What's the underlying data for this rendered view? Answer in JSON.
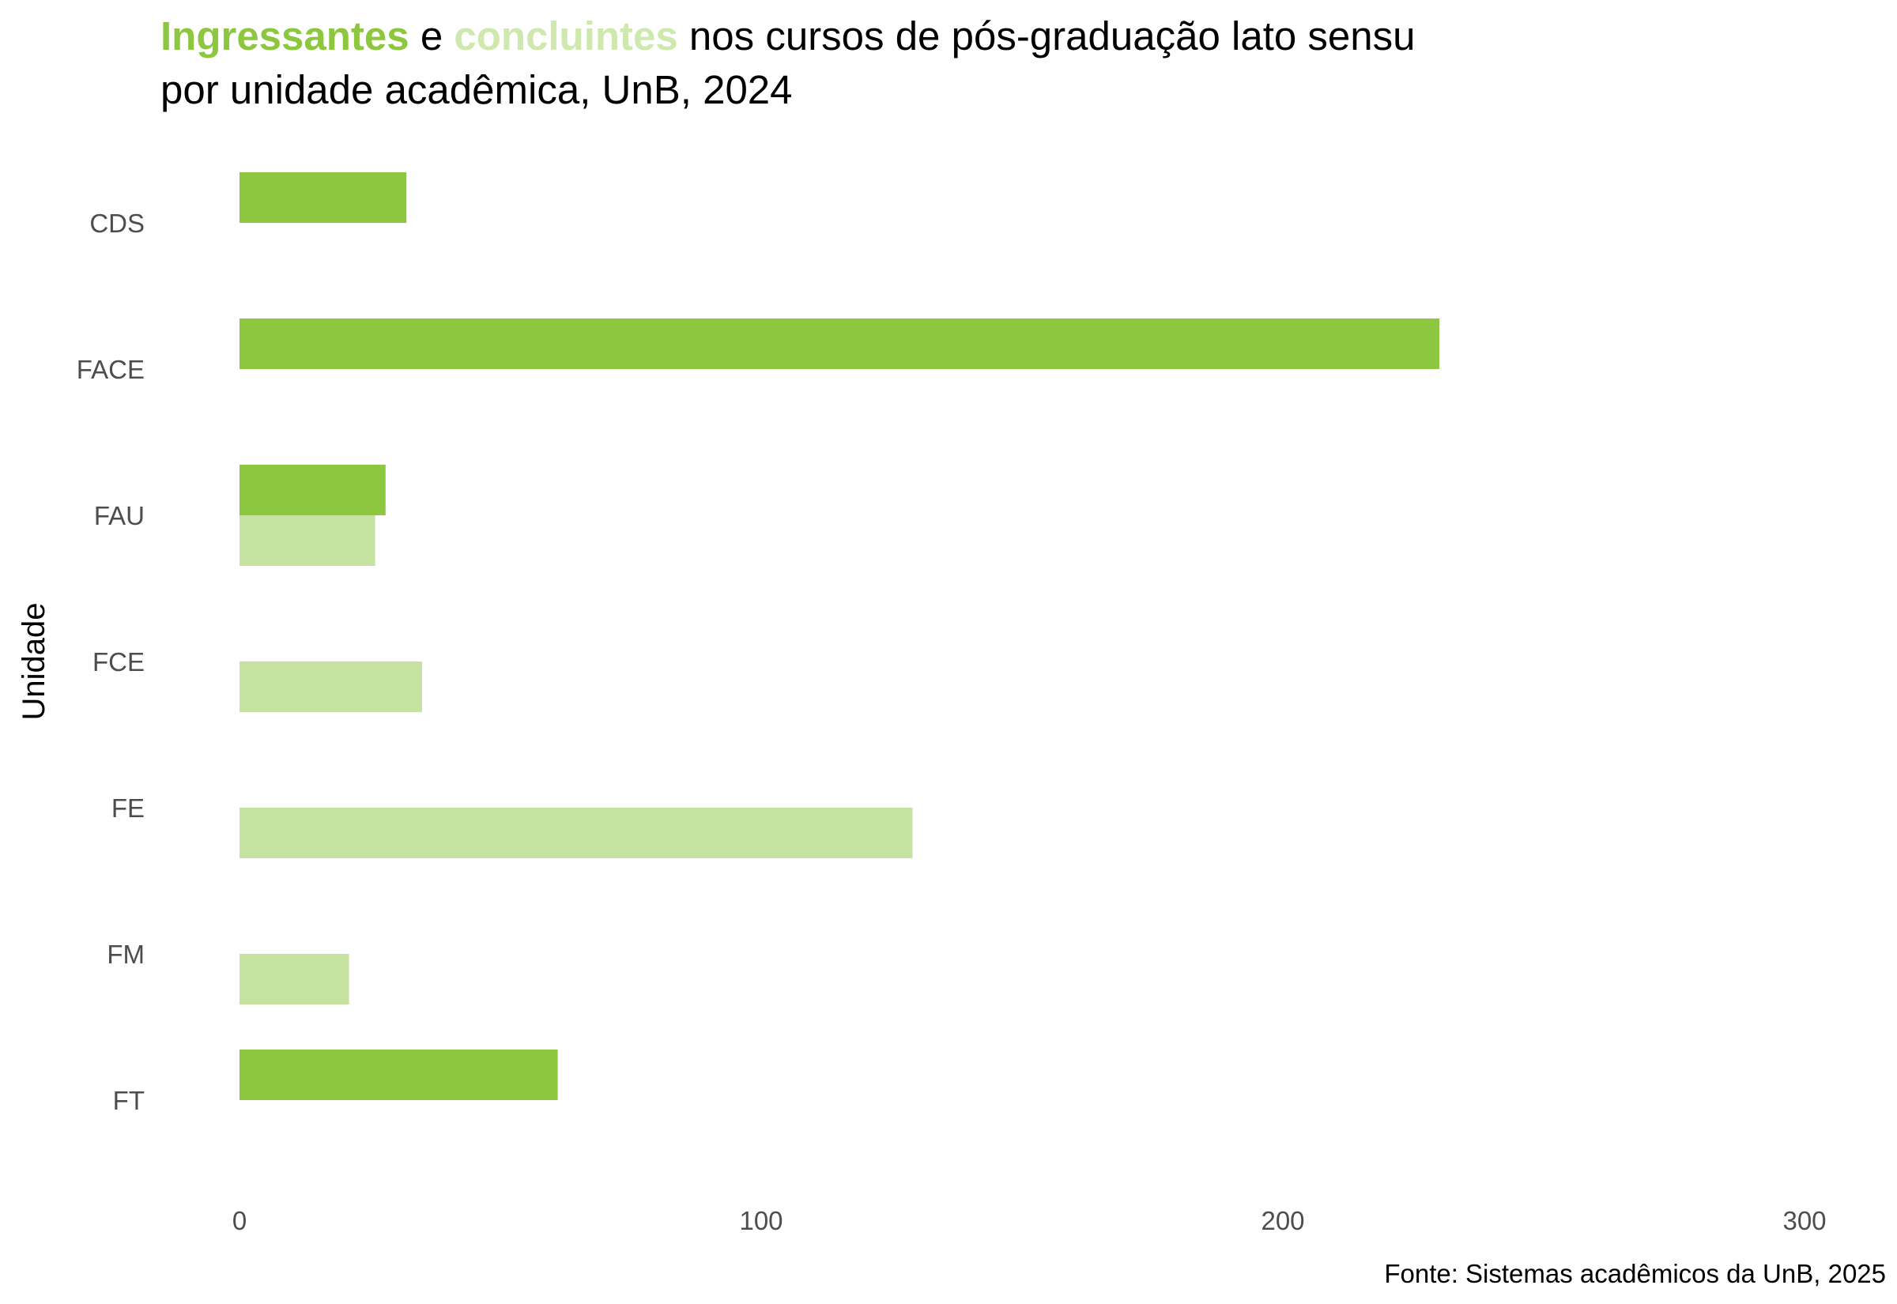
{
  "chart_data": {
    "type": "bar",
    "orientation": "horizontal",
    "title": {
      "line1_part1": "Ingressantes",
      "line1_part2": " e ",
      "line1_part3": "concluintes",
      "line1_part4": " nos cursos de pós-graduação lato sensu",
      "line2": "por unidade acadêmica, UnB, 2024"
    },
    "ylabel": "Unidade",
    "xlabel": "",
    "caption": "Fonte: Sistemas acadêmicos da UnB, 2025",
    "categories": [
      "CDS",
      "FACE",
      "FAU",
      "FCE",
      "FE",
      "FM",
      "FT"
    ],
    "xlim": [
      0,
      300
    ],
    "xticks": [
      "0",
      "100",
      "200",
      "300"
    ],
    "grid": false,
    "legend": "none",
    "series": [
      {
        "key": "ingressantes",
        "color": "#8dc63f",
        "values": [
          32,
          230,
          28,
          null,
          null,
          null,
          61
        ]
      },
      {
        "key": "concluintes",
        "color": "#c6e2a0",
        "values": [
          null,
          null,
          26,
          35,
          129,
          21,
          null
        ]
      }
    ]
  }
}
